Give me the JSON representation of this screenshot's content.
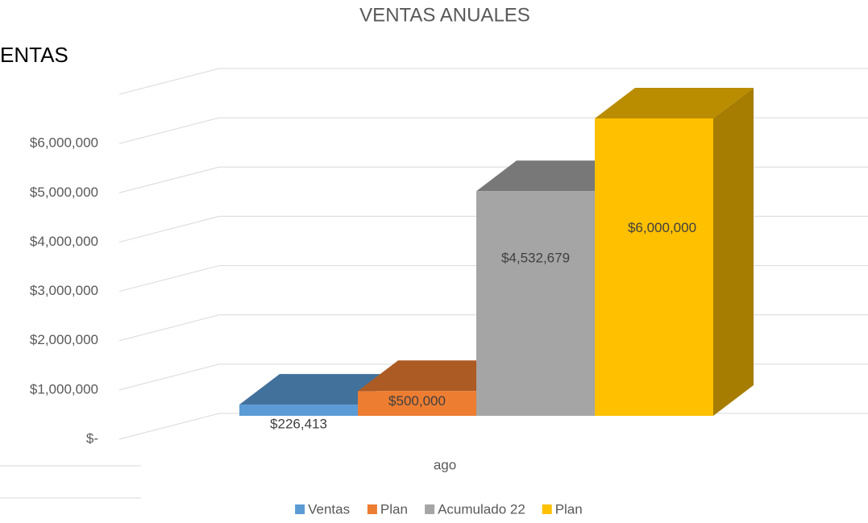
{
  "chart_data": {
    "type": "bar3d",
    "title": "VENTAS ANUALES",
    "side_text": "ENTAS",
    "categories": [
      "ago"
    ],
    "series": [
      {
        "name": "Ventas",
        "color": "#5b9bd5",
        "values": [
          226413
        ],
        "value_labels": [
          "$226,413"
        ]
      },
      {
        "name": "Plan",
        "color": "#ed7d31",
        "values": [
          500000
        ],
        "value_labels": [
          "$500,000"
        ]
      },
      {
        "name": "Acumulado 22",
        "color": "#a5a5a5",
        "values": [
          4532679
        ],
        "value_labels": [
          "$4,532,679"
        ]
      },
      {
        "name": "Plan",
        "color": "#ffc000",
        "values": [
          6000000
        ],
        "value_labels": [
          "$6,000,000"
        ]
      }
    ],
    "ylim": [
      0,
      7000000
    ],
    "yticks": [
      {
        "value": 0,
        "label": "$-"
      },
      {
        "value": 1000000,
        "label": "$1,000,000"
      },
      {
        "value": 2000000,
        "label": "$2,000,000"
      },
      {
        "value": 3000000,
        "label": "$3,000,000"
      },
      {
        "value": 4000000,
        "label": "$4,000,000"
      },
      {
        "value": 5000000,
        "label": "$5,000,000"
      },
      {
        "value": 6000000,
        "label": "$6,000,000"
      }
    ],
    "grid": true,
    "legend": "bottom"
  }
}
